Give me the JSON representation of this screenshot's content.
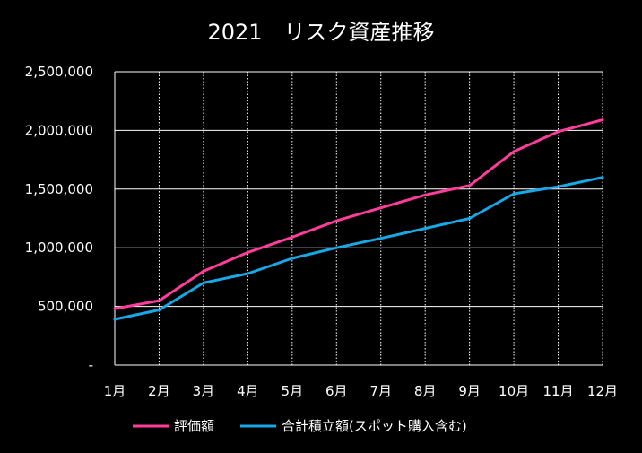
{
  "chart_data": {
    "type": "line",
    "title": "2021　リスク資産推移",
    "xlabel": "",
    "ylabel": "",
    "categories": [
      "1月",
      "2月",
      "3月",
      "4月",
      "5月",
      "6月",
      "7月",
      "8月",
      "9月",
      "10月",
      "11月",
      "12月"
    ],
    "series": [
      {
        "name": "評価額",
        "color": "#ff3d9a",
        "values": [
          480000,
          550000,
          800000,
          960000,
          1090000,
          1230000,
          1340000,
          1450000,
          1530000,
          1820000,
          1990000,
          2090000
        ]
      },
      {
        "name": "合計積立額(スポット購入含む)",
        "color": "#1aa7e6",
        "values": [
          390000,
          470000,
          700000,
          780000,
          910000,
          1000000,
          1080000,
          1165000,
          1250000,
          1460000,
          1520000,
          1600000
        ]
      }
    ],
    "ylim": [
      0,
      2500000
    ],
    "y_ticks": [
      0,
      500000,
      1000000,
      1500000,
      2000000,
      2500000
    ],
    "y_tick_labels": [
      "-",
      "500,000",
      "1,000,000",
      "1,500,000",
      "2,000,000",
      "2,500,000"
    ],
    "grid": {
      "horizontal": "solid",
      "vertical": "dotted",
      "color": "#ffffff"
    },
    "legend": "bottom",
    "background": "#000000"
  }
}
